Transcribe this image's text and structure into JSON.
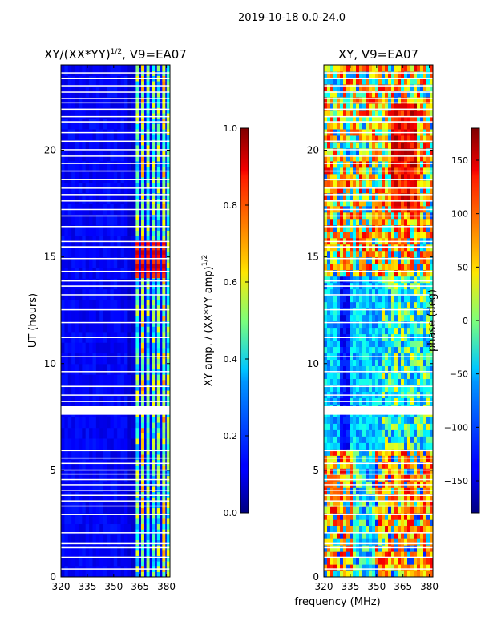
{
  "figure": {
    "suptitle": "2019-10-18 0.0-24.0",
    "xlabel": "frequency (MHz)"
  },
  "chart_data": [
    {
      "type": "heatmap",
      "id": "amp",
      "title": "XY/(XX*YY)",
      "title_sup": "1/2",
      "title_suffix": ", V9=EA07",
      "xlabel": "",
      "ylabel": "UT (hours)",
      "xlim": [
        320,
        382
      ],
      "ylim": [
        0,
        24
      ],
      "xticks": [
        320,
        335,
        350,
        365,
        380
      ],
      "yticks": [
        0,
        5,
        10,
        15,
        20
      ],
      "colormap": "jet",
      "colorbar": {
        "label": "XY amp. / (XX*YY amp)",
        "label_sup": "1/2",
        "range": [
          0.0,
          1.0
        ],
        "ticks": [
          "0.0",
          "0.2",
          "0.4",
          "0.6",
          "0.8",
          "1.0"
        ],
        "tick_values": [
          0.0,
          0.2,
          0.4,
          0.6,
          0.8,
          1.0
        ]
      },
      "description": "Mostly low normalized amplitude (~0.05-0.15) below 362 MHz; bright vertical channel stripes at ~363-381 MHz (0.3-0.8), strongest near 14-16 UT (~0.85-0.95); white horizontal gaps are flagged time slots."
    },
    {
      "type": "heatmap",
      "id": "phase",
      "title": "XY, V9=EA07",
      "xlabel": "",
      "ylabel": "",
      "xlim": [
        320,
        382
      ],
      "ylim": [
        0,
        24
      ],
      "xticks": [
        320,
        335,
        350,
        365,
        380
      ],
      "yticks": [
        0,
        5,
        10,
        15,
        20
      ],
      "colormap": "jet",
      "colorbar": {
        "label": "phase (deg)",
        "range": [
          -180,
          180
        ],
        "ticks": [
          "150",
          "100",
          "50",
          "0",
          "−50",
          "−100",
          "−150"
        ],
        "tick_values": [
          150,
          100,
          50,
          0,
          -50,
          -100,
          -150
        ]
      },
      "description": "Phase varies widely (-180 to 180 deg); mostly negative (blue/cyan) around 6-14 UT, mixed warm/positive tones 14-24 UT and 0-5 UT; white horizontal gaps are flagged time slots."
    }
  ]
}
